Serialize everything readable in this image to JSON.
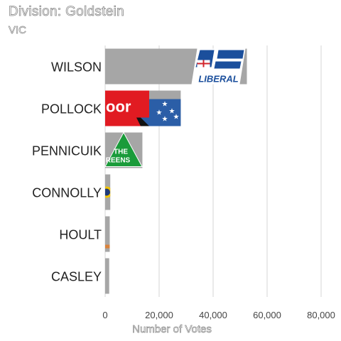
{
  "chart_data": {
    "type": "bar",
    "orientation": "horizontal",
    "title": "Division: Goldstein",
    "subtitle": "VIC",
    "xlabel": "Number of Votes",
    "ylabel": "",
    "xlim": [
      0,
      80000
    ],
    "xticks": [
      0,
      20000,
      40000,
      60000,
      80000
    ],
    "xtick_labels": [
      "0",
      "20,000",
      "40,000",
      "60,000",
      "80,000"
    ],
    "grid": true,
    "categories": [
      "WILSON",
      "POLLOCK",
      "PENNICUIK",
      "CONNOLLY",
      "HOULT",
      "CASLEY"
    ],
    "values": [
      52500,
      28000,
      13800,
      1900,
      1700,
      1500
    ],
    "bar_color": "#a6a6a6",
    "party_logos": [
      {
        "party": "liberal",
        "text": "LIBERAL"
      },
      {
        "party": "labor",
        "text": "oor"
      },
      {
        "party": "greens",
        "text_line1": "THE",
        "text_line2": "REENS"
      },
      {
        "party": "other-yellow-circle"
      },
      {
        "party": "other-orange-strip"
      },
      {
        "party": "none"
      }
    ],
    "colors": {
      "liberal": "#1b4f9c",
      "labor": "#e11b22",
      "labor_flag": "#2b5ea7",
      "greens": "#1a9b3a",
      "yellow": "#f2c300",
      "orange": "#d9823b"
    }
  }
}
